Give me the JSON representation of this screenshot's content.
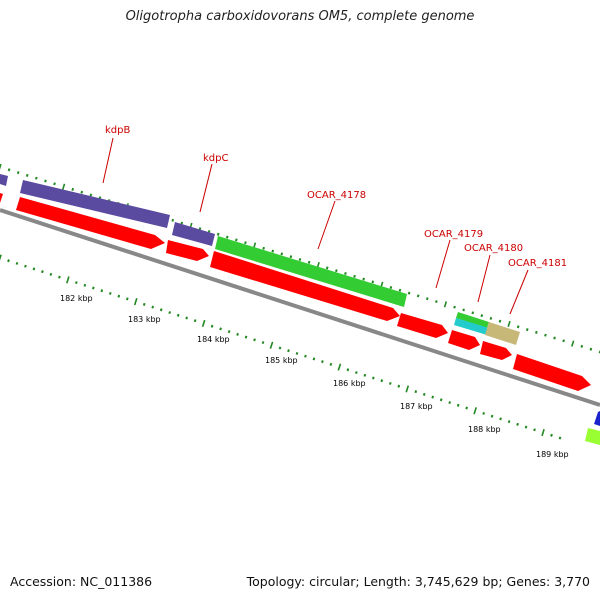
{
  "title": "Oligotropha carboxidovorans OM5, complete genome",
  "footer": {
    "accession": "Accession: NC_011386",
    "stats": "Topology: circular; Length: 3,745,629 bp; Genes: 3,770"
  },
  "colors": {
    "cds_red": "#ff0000",
    "gene_purple": "#5a4aa0",
    "gene_green": "#33cc33",
    "gene_teal": "#22cccc",
    "gene_khaki": "#c8b878",
    "gene_blue": "#1a22cc",
    "gene_lime": "#99ff33",
    "backbone": "#888888",
    "tick": "#228822",
    "label": "#cc0000"
  },
  "gene_labels": [
    "kdpB",
    "kdpC",
    "OCAR_4178",
    "OCAR_4179",
    "OCAR_4180",
    "OCAR_4181"
  ],
  "scale_labels": [
    "182 kbp",
    "183 kbp",
    "184 kbp",
    "185 kbp",
    "186 kbp",
    "187 kbp",
    "188 kbp",
    "189 kbp"
  ]
}
